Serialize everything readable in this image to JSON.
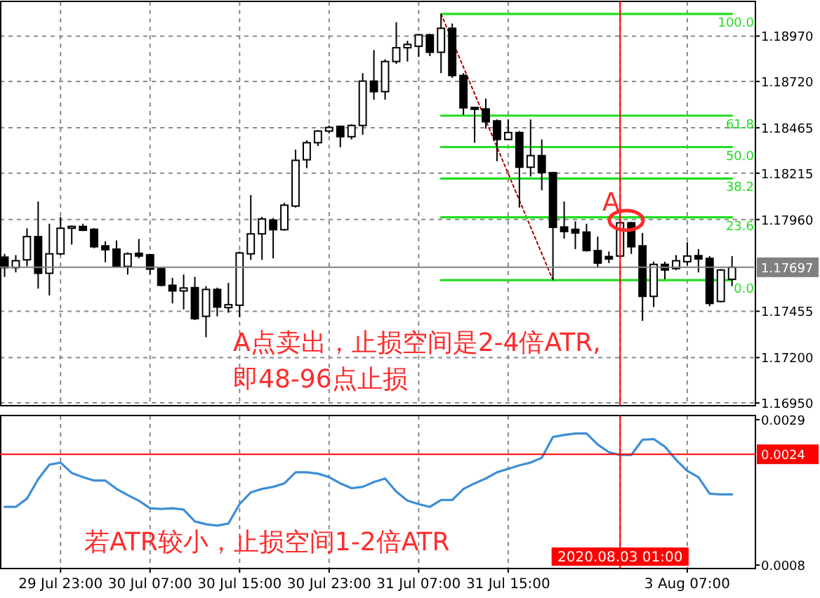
{
  "chart_data": [
    {
      "type": "candlestick",
      "tick_labels": "y",
      "grid": true,
      "categories": [
        null,
        null,
        null,
        null,
        null,
        "29 Jul 23:00",
        null,
        null,
        null,
        null,
        null,
        null,
        null,
        "30 Jul 07:00",
        null,
        null,
        null,
        null,
        null,
        null,
        null,
        "30 Jul 15:00",
        null,
        null,
        null,
        null,
        null,
        null,
        null,
        "30 Jul 23:00",
        null,
        null,
        null,
        null,
        null,
        null,
        null,
        "31 Jul 07:00",
        null,
        null,
        null,
        null,
        null,
        null,
        null,
        "31 Jul 15:00",
        null,
        null,
        null,
        null,
        null,
        null,
        null,
        null,
        null,
        "2020.08.03 01:00",
        null,
        null,
        null,
        null,
        null,
        "3 Aug 07:00",
        null,
        null,
        null,
        null
      ],
      "ohlc": [
        [
          1.17753,
          1.17771,
          1.17644,
          1.17695
        ],
        [
          1.17695,
          1.17764,
          1.17669,
          1.17733
        ],
        [
          1.17738,
          1.17912,
          1.17702,
          1.17866
        ],
        [
          1.17866,
          1.18059,
          1.1758,
          1.17664
        ],
        [
          1.17664,
          1.17937,
          1.17542,
          1.17771
        ],
        [
          1.17771,
          1.17975,
          1.17764,
          1.17912
        ],
        [
          1.17912,
          1.17927,
          1.17822,
          1.17922
        ],
        [
          1.17922,
          1.17937,
          1.17896,
          1.17901
        ],
        [
          1.17906,
          1.17912,
          1.17802,
          1.1781
        ],
        [
          1.17815,
          1.1784,
          1.17725,
          1.17794
        ],
        [
          1.17797,
          1.17845,
          1.17695,
          1.177
        ],
        [
          1.17702,
          1.17779,
          1.17657,
          1.17771
        ],
        [
          1.17774,
          1.17853,
          1.17746,
          1.17759
        ],
        [
          1.17766,
          1.17771,
          1.17657,
          1.17687
        ],
        [
          1.1769,
          1.17695,
          1.17593,
          1.17598
        ],
        [
          1.17598,
          1.17639,
          1.17498,
          1.17567
        ],
        [
          1.17567,
          1.17657,
          1.17465,
          1.17583
        ],
        [
          1.17585,
          1.17644,
          1.17407,
          1.17414
        ],
        [
          1.17427,
          1.17593,
          1.17312,
          1.17575
        ],
        [
          1.17575,
          1.17585,
          1.17427,
          1.17478
        ],
        [
          1.17475,
          1.17611,
          1.17447,
          1.17491
        ],
        [
          1.17488,
          1.17784,
          1.17422,
          1.17776
        ],
        [
          1.17771,
          1.18095,
          1.17738,
          1.17881
        ],
        [
          1.17881,
          1.17975,
          1.17738,
          1.17963
        ],
        [
          1.17957,
          1.17968,
          1.17746,
          1.17904
        ],
        [
          1.17904,
          1.18052,
          1.17899,
          1.18039
        ],
        [
          1.18034,
          1.18345,
          1.18026,
          1.18286
        ],
        [
          1.18289,
          1.18396,
          1.18243,
          1.18383
        ],
        [
          1.18383,
          1.18452,
          1.18365,
          1.18447
        ],
        [
          1.18447,
          1.18478,
          1.18434,
          1.18467
        ],
        [
          1.18473,
          1.18478,
          1.18358,
          1.18416
        ],
        [
          1.18416,
          1.18485,
          1.18401,
          1.18478
        ],
        [
          1.18478,
          1.18766,
          1.18427,
          1.18722
        ],
        [
          1.18722,
          1.18893,
          1.1862,
          1.18664
        ],
        [
          1.18664,
          1.18842,
          1.1862,
          1.1883
        ],
        [
          1.1883,
          1.19046,
          1.18817,
          1.18906
        ],
        [
          1.18906,
          1.18944,
          1.1883,
          1.18924
        ],
        [
          1.18914,
          1.18983,
          1.18855,
          1.18977
        ],
        [
          1.18977,
          1.18983,
          1.1886,
          1.18881
        ],
        [
          1.18881,
          1.19092,
          1.18766,
          1.19013
        ],
        [
          1.19013,
          1.19039,
          1.1874,
          1.18753
        ],
        [
          1.18753,
          1.18766,
          1.18536,
          1.18575
        ],
        [
          1.18577,
          1.1858,
          1.18383,
          1.18567
        ],
        [
          1.18569,
          1.18626,
          1.1846,
          1.18498
        ],
        [
          1.18503,
          1.18511,
          1.18281,
          1.18401
        ],
        [
          1.18401,
          1.18511,
          1.18396,
          1.18439
        ],
        [
          1.18439,
          1.18447,
          1.18026,
          1.18248
        ],
        [
          1.18248,
          1.18511,
          1.18197,
          1.18312
        ],
        [
          1.18312,
          1.18401,
          1.18121,
          1.18218
        ],
        [
          1.18218,
          1.18223,
          1.17626,
          1.17917
        ],
        [
          1.17919,
          1.18059,
          1.17855,
          1.17894
        ],
        [
          1.17906,
          1.1795,
          1.17797,
          1.17886
        ],
        [
          1.17891,
          1.17937,
          1.17784,
          1.17789
        ],
        [
          1.17789,
          1.17866,
          1.17695,
          1.1772
        ],
        [
          1.17756,
          1.17784,
          1.1772,
          1.17743
        ],
        [
          1.17759,
          1.17963,
          1.17753,
          1.17942
        ],
        [
          1.17942,
          1.17947,
          1.17771,
          1.1781
        ],
        [
          1.17815,
          1.17886,
          1.17402,
          1.17537
        ],
        [
          1.17537,
          1.17728,
          1.17478,
          1.17713
        ],
        [
          1.17713,
          1.17728,
          1.17631,
          1.17682
        ],
        [
          1.1769,
          1.17764,
          1.17682,
          1.17733
        ],
        [
          1.17728,
          1.17835,
          1.17708,
          1.17759
        ],
        [
          1.17761,
          1.17797,
          1.17669,
          1.17743
        ],
        [
          1.17746,
          1.17759,
          1.17483,
          1.17498
        ],
        [
          1.17509,
          1.17687,
          1.17504,
          1.17682
        ],
        [
          1.17631,
          1.17759,
          1.17593,
          1.17697
        ]
      ],
      "ylim": [
        1.16935,
        1.19161
      ],
      "yticks": [
        {
          "value": 1.1897,
          "label": "1.18970"
        },
        {
          "value": 1.1872,
          "label": "1.18720"
        },
        {
          "value": 1.18465,
          "label": "1.18465"
        },
        {
          "value": 1.18215,
          "label": "1.18215"
        },
        {
          "value": 1.1796,
          "label": "1.17960"
        },
        {
          "value": 1.17455,
          "label": "1.17455"
        },
        {
          "value": 1.172,
          "label": "1.17200"
        },
        {
          "value": 1.1695,
          "label": "1.16950"
        }
      ],
      "series": [
        {
          "type": "line",
          "color": "#b00000",
          "line_style": "dotted",
          "values": [
            null,
            null,
            null,
            null,
            null,
            null,
            null,
            null,
            null,
            null,
            null,
            null,
            null,
            null,
            null,
            null,
            null,
            null,
            null,
            null,
            null,
            null,
            null,
            null,
            null,
            null,
            null,
            null,
            null,
            null,
            null,
            null,
            null,
            null,
            null,
            null,
            null,
            null,
            null,
            1.19092,
            null,
            null,
            null,
            null,
            null,
            null,
            null,
            null,
            null,
            1.17626,
            null,
            null,
            null,
            null,
            null,
            null,
            null,
            null,
            null,
            null,
            null,
            null,
            null,
            null,
            null,
            null
          ]
        },
        {
          "type": "line",
          "name": "100.0",
          "color": "#22dd22",
          "values": [
            null,
            null,
            null,
            null,
            null,
            null,
            null,
            null,
            null,
            null,
            null,
            null,
            null,
            null,
            null,
            null,
            null,
            null,
            null,
            null,
            null,
            null,
            null,
            null,
            null,
            null,
            null,
            null,
            null,
            null,
            null,
            null,
            null,
            null,
            null,
            null,
            null,
            null,
            null,
            1.19092,
            1.19092,
            1.19092,
            1.19092,
            1.19092,
            1.19092,
            1.19092,
            1.19092,
            1.19092,
            1.19092,
            1.19092,
            1.19092,
            1.19092,
            1.19092,
            1.19092,
            1.19092,
            1.19092,
            1.19092,
            1.19092,
            1.19092,
            1.19092,
            1.19092,
            1.19092,
            1.19092,
            1.19092,
            1.19092,
            1.19092
          ]
        },
        {
          "type": "line",
          "name": "61.8",
          "color": "#22dd22",
          "values": [
            null,
            null,
            null,
            null,
            null,
            null,
            null,
            null,
            null,
            null,
            null,
            null,
            null,
            null,
            null,
            null,
            null,
            null,
            null,
            null,
            null,
            null,
            null,
            null,
            null,
            null,
            null,
            null,
            null,
            null,
            null,
            null,
            null,
            null,
            null,
            null,
            null,
            null,
            null,
            1.18532,
            1.18532,
            1.18532,
            1.18532,
            1.18532,
            1.18532,
            1.18532,
            1.18532,
            1.18532,
            1.18532,
            1.18532,
            1.18532,
            1.18532,
            1.18532,
            1.18532,
            1.18532,
            1.18532,
            1.18532,
            1.18532,
            1.18532,
            1.18532,
            1.18532,
            1.18532,
            1.18532,
            1.18532,
            1.18532,
            1.18532
          ]
        },
        {
          "type": "line",
          "name": "50.0",
          "color": "#22dd22",
          "values": [
            null,
            null,
            null,
            null,
            null,
            null,
            null,
            null,
            null,
            null,
            null,
            null,
            null,
            null,
            null,
            null,
            null,
            null,
            null,
            null,
            null,
            null,
            null,
            null,
            null,
            null,
            null,
            null,
            null,
            null,
            null,
            null,
            null,
            null,
            null,
            null,
            null,
            null,
            null,
            1.18359,
            1.18359,
            1.18359,
            1.18359,
            1.18359,
            1.18359,
            1.18359,
            1.18359,
            1.18359,
            1.18359,
            1.18359,
            1.18359,
            1.18359,
            1.18359,
            1.18359,
            1.18359,
            1.18359,
            1.18359,
            1.18359,
            1.18359,
            1.18359,
            1.18359,
            1.18359,
            1.18359,
            1.18359,
            1.18359,
            1.18359
          ]
        },
        {
          "type": "line",
          "name": "38.2",
          "color": "#22dd22",
          "values": [
            null,
            null,
            null,
            null,
            null,
            null,
            null,
            null,
            null,
            null,
            null,
            null,
            null,
            null,
            null,
            null,
            null,
            null,
            null,
            null,
            null,
            null,
            null,
            null,
            null,
            null,
            null,
            null,
            null,
            null,
            null,
            null,
            null,
            null,
            null,
            null,
            null,
            null,
            null,
            1.18186,
            1.18186,
            1.18186,
            1.18186,
            1.18186,
            1.18186,
            1.18186,
            1.18186,
            1.18186,
            1.18186,
            1.18186,
            1.18186,
            1.18186,
            1.18186,
            1.18186,
            1.18186,
            1.18186,
            1.18186,
            1.18186,
            1.18186,
            1.18186,
            1.18186,
            1.18186,
            1.18186,
            1.18186,
            1.18186,
            1.18186
          ]
        },
        {
          "type": "line",
          "name": "23.6",
          "color": "#22dd22",
          "values": [
            null,
            null,
            null,
            null,
            null,
            null,
            null,
            null,
            null,
            null,
            null,
            null,
            null,
            null,
            null,
            null,
            null,
            null,
            null,
            null,
            null,
            null,
            null,
            null,
            null,
            null,
            null,
            null,
            null,
            null,
            null,
            null,
            null,
            null,
            null,
            null,
            null,
            null,
            null,
            1.17972,
            1.17972,
            1.17972,
            1.17972,
            1.17972,
            1.17972,
            1.17972,
            1.17972,
            1.17972,
            1.17972,
            1.17972,
            1.17972,
            1.17972,
            1.17972,
            1.17972,
            1.17972,
            1.17972,
            1.17972,
            1.17972,
            1.17972,
            1.17972,
            1.17972,
            1.17972,
            1.17972,
            1.17972,
            1.17972,
            1.17972
          ]
        },
        {
          "type": "line",
          "name": "0.0",
          "color": "#22dd22",
          "values": [
            null,
            null,
            null,
            null,
            null,
            null,
            null,
            null,
            null,
            null,
            null,
            null,
            null,
            null,
            null,
            null,
            null,
            null,
            null,
            null,
            null,
            null,
            null,
            null,
            null,
            null,
            null,
            null,
            null,
            null,
            null,
            null,
            null,
            null,
            null,
            null,
            null,
            null,
            null,
            1.17626,
            1.17626,
            1.17626,
            1.17626,
            1.17626,
            1.17626,
            1.17626,
            1.17626,
            1.17626,
            1.17626,
            1.17626,
            1.17626,
            1.17626,
            1.17626,
            1.17626,
            1.17626,
            1.17626,
            1.17626,
            1.17626,
            1.17626,
            1.17626,
            1.17626,
            1.17626,
            1.17626,
            1.17626,
            1.17626,
            1.17626
          ]
        }
      ],
      "ref_lines": [
        {
          "axis": "y",
          "value": 1.17697,
          "label": "1.17697",
          "color": "#808080"
        },
        {
          "axis": "x",
          "value": "2020.08.03 01:00",
          "color": "#ff0000"
        }
      ],
      "annotations": [
        "A",
        "A点卖出，止损空间是2-4倍ATR,\n即48-96点止损"
      ]
    },
    {
      "type": "line",
      "grid": "x",
      "color": "#3d8ed6",
      "categories": [
        null,
        null,
        null,
        null,
        null,
        "29 Jul 23:00",
        null,
        null,
        null,
        null,
        null,
        null,
        null,
        "30 Jul 07:00",
        null,
        null,
        null,
        null,
        null,
        null,
        null,
        "30 Jul 15:00",
        null,
        null,
        null,
        null,
        null,
        null,
        null,
        "30 Jul 23:00",
        null,
        null,
        null,
        null,
        null,
        null,
        null,
        "31 Jul 07:00",
        null,
        null,
        null,
        null,
        null,
        null,
        null,
        "31 Jul 15:00",
        null,
        null,
        null,
        null,
        null,
        null,
        null,
        null,
        null,
        "2020.08.03 01:00",
        null,
        null,
        null,
        null,
        null,
        "3 Aug 07:00",
        null,
        null,
        null,
        null
      ],
      "values": [
        0.00164,
        0.00164,
        0.00176,
        0.00204,
        0.00225,
        0.00228,
        0.00213,
        0.00207,
        0.00202,
        0.00202,
        0.0019,
        0.00181,
        0.00173,
        0.00162,
        0.00161,
        0.00162,
        0.0016,
        0.00143,
        0.00139,
        0.00137,
        0.0014,
        0.00168,
        0.00185,
        0.0019,
        0.00193,
        0.00198,
        0.00214,
        0.00214,
        0.00212,
        0.00207,
        0.00198,
        0.00191,
        0.00193,
        0.002,
        0.00205,
        0.00186,
        0.00173,
        0.00168,
        0.00164,
        0.00174,
        0.00174,
        0.0019,
        0.00198,
        0.00205,
        0.00214,
        0.00219,
        0.00224,
        0.00228,
        0.00235,
        0.00265,
        0.00268,
        0.0027,
        0.0027,
        0.00254,
        0.00243,
        0.00239,
        0.00239,
        0.00261,
        0.00262,
        0.00251,
        0.00232,
        0.00216,
        0.00207,
        0.00183,
        0.00182,
        0.00182
      ],
      "ylim": [
        0.00075,
        0.00296
      ],
      "yticks": [
        0.0029,
        0.0008
      ],
      "ref_lines": [
        {
          "axis": "y",
          "value": 0.0024,
          "label": "0.0024",
          "color": "#ff0000"
        },
        {
          "axis": "x",
          "value": "2020.08.03 01:00",
          "color": "#ff0000"
        }
      ],
      "annotations": [
        "若ATR较小，止损空间1-2倍ATR"
      ]
    }
  ]
}
